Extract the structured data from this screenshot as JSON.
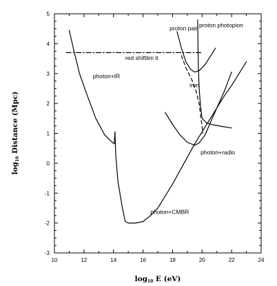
{
  "chart_data": {
    "type": "line",
    "xlabel": "log10 E (eV)",
    "ylabel": "log10 Distance (Mpc)",
    "xlim": [
      10,
      24
    ],
    "ylim": [
      -3,
      5
    ],
    "xticks": [
      "10",
      "12",
      "14",
      "16",
      "18",
      "20",
      "22",
      "24"
    ],
    "yticks": [
      "-3",
      "-2",
      "-1",
      "0",
      "1",
      "2",
      "3",
      "4",
      "5"
    ],
    "grid": false,
    "series": [
      {
        "name": "photon+IR",
        "points": [
          [
            11.0,
            4.45
          ],
          [
            11.3,
            3.8
          ],
          [
            11.7,
            3.0
          ],
          [
            12.2,
            2.3
          ],
          [
            12.8,
            1.5
          ],
          [
            13.4,
            0.95
          ],
          [
            13.8,
            0.75
          ],
          [
            14.05,
            0.65
          ],
          [
            14.1,
            1.05
          ]
        ]
      },
      {
        "name": "photon+CMBR",
        "points": [
          [
            14.1,
            1.05
          ],
          [
            14.15,
            0.3
          ],
          [
            14.3,
            -0.6
          ],
          [
            14.6,
            -1.5
          ],
          [
            14.8,
            -1.95
          ],
          [
            15.0,
            -2.0
          ],
          [
            15.5,
            -2.0
          ],
          [
            16.0,
            -1.95
          ],
          [
            16.5,
            -1.75
          ],
          [
            17.0,
            -1.5
          ],
          [
            17.5,
            -1.1
          ],
          [
            18.0,
            -0.7
          ],
          [
            18.5,
            -0.25
          ],
          [
            19.0,
            0.2
          ],
          [
            19.5,
            0.65
          ],
          [
            20.0,
            1.05
          ],
          [
            20.5,
            1.45
          ],
          [
            21.0,
            1.85
          ],
          [
            21.5,
            2.25
          ],
          [
            22.0,
            2.6
          ],
          [
            22.5,
            3.0
          ],
          [
            23.0,
            3.4
          ]
        ]
      },
      {
        "name": "photon+radio",
        "points": [
          [
            17.5,
            1.7
          ],
          [
            18.0,
            1.3
          ],
          [
            18.5,
            0.95
          ],
          [
            19.0,
            0.7
          ],
          [
            19.5,
            0.6
          ],
          [
            19.8,
            0.68
          ],
          [
            20.2,
            0.95
          ],
          [
            20.6,
            1.4
          ],
          [
            21.0,
            1.85
          ],
          [
            21.5,
            2.4
          ],
          [
            22.0,
            3.05
          ]
        ]
      },
      {
        "name": "proton pair",
        "points": [
          [
            18.3,
            4.4
          ],
          [
            18.6,
            3.85
          ],
          [
            18.9,
            3.4
          ],
          [
            19.2,
            3.15
          ],
          [
            19.5,
            3.05
          ],
          [
            19.8,
            3.1
          ],
          [
            20.2,
            3.3
          ],
          [
            20.6,
            3.6
          ],
          [
            20.9,
            3.85
          ]
        ]
      },
      {
        "name": "proton photopion",
        "points": [
          [
            19.7,
            4.8
          ],
          [
            19.72,
            4.0
          ],
          [
            19.75,
            3.2
          ],
          [
            19.8,
            2.5
          ],
          [
            19.9,
            1.9
          ],
          [
            20.0,
            1.5
          ],
          [
            20.3,
            1.35
          ],
          [
            20.8,
            1.28
          ],
          [
            21.5,
            1.22
          ],
          [
            22.0,
            1.18
          ]
        ]
      },
      {
        "name": "iron",
        "style": "dashed",
        "points": [
          [
            18.6,
            3.6
          ],
          [
            18.9,
            3.2
          ],
          [
            19.3,
            2.8
          ],
          [
            19.6,
            2.4
          ],
          [
            19.8,
            2.0
          ],
          [
            19.9,
            1.6
          ],
          [
            20.0,
            1.25
          ],
          [
            20.05,
            1.0
          ]
        ]
      },
      {
        "name": "red shift limit",
        "style": "dashdot",
        "points": [
          [
            10.8,
            3.7
          ],
          [
            20.0,
            3.7
          ]
        ]
      }
    ],
    "annotations": [
      {
        "text": "proton pair",
        "x": 17.8,
        "y": 4.45
      },
      {
        "text": "proton photopion",
        "x": 19.8,
        "y": 4.55
      },
      {
        "text": "red shiftlim it",
        "x": 14.8,
        "y": 3.45
      },
      {
        "text": "photon+IR",
        "x": 12.6,
        "y": 2.85
      },
      {
        "text": "iron",
        "x": 19.15,
        "y": 2.55
      },
      {
        "text": "photon+radio",
        "x": 19.9,
        "y": 0.3
      },
      {
        "text": "photon+CMBR",
        "x": 16.5,
        "y": -1.7
      }
    ]
  }
}
